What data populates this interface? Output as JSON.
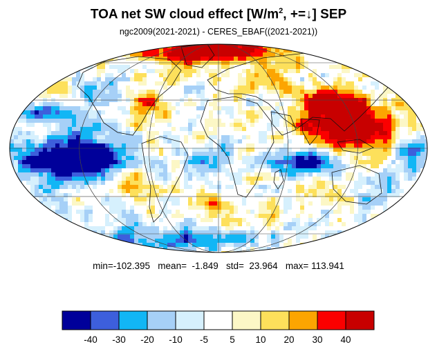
{
  "title": {
    "main": "TOA net SW cloud effect [W/m",
    "sup": "2",
    "suffix": ", +=↓]  SEP"
  },
  "subtitle": "ngc2009(2021-2021) - CERES_EBAF((2021-2021))",
  "stats": {
    "text": "min=-102.395   mean=  -1.849   std=  23.964   max= 113.941",
    "min": -102.395,
    "mean": -1.849,
    "std": 23.964,
    "max": 113.941
  },
  "map": {
    "projection": "Mollweide",
    "grid": true,
    "coastlines": true
  },
  "colorbar": {
    "colors": [
      "#00009a",
      "#3d5fdc",
      "#12b6f5",
      "#a6d0f7",
      "#d6f0fd",
      "#ffffff",
      "#fcf7c6",
      "#fde05b",
      "#fca501",
      "#fb0000",
      "#c80000"
    ],
    "tick_labels": [
      "-40",
      "-30",
      "-20",
      "-10",
      "-5",
      "5",
      "10",
      "20",
      "30",
      "40"
    ],
    "levels": [
      -40,
      -30,
      -20,
      -10,
      -5,
      5,
      10,
      20,
      30,
      40
    ]
  }
}
